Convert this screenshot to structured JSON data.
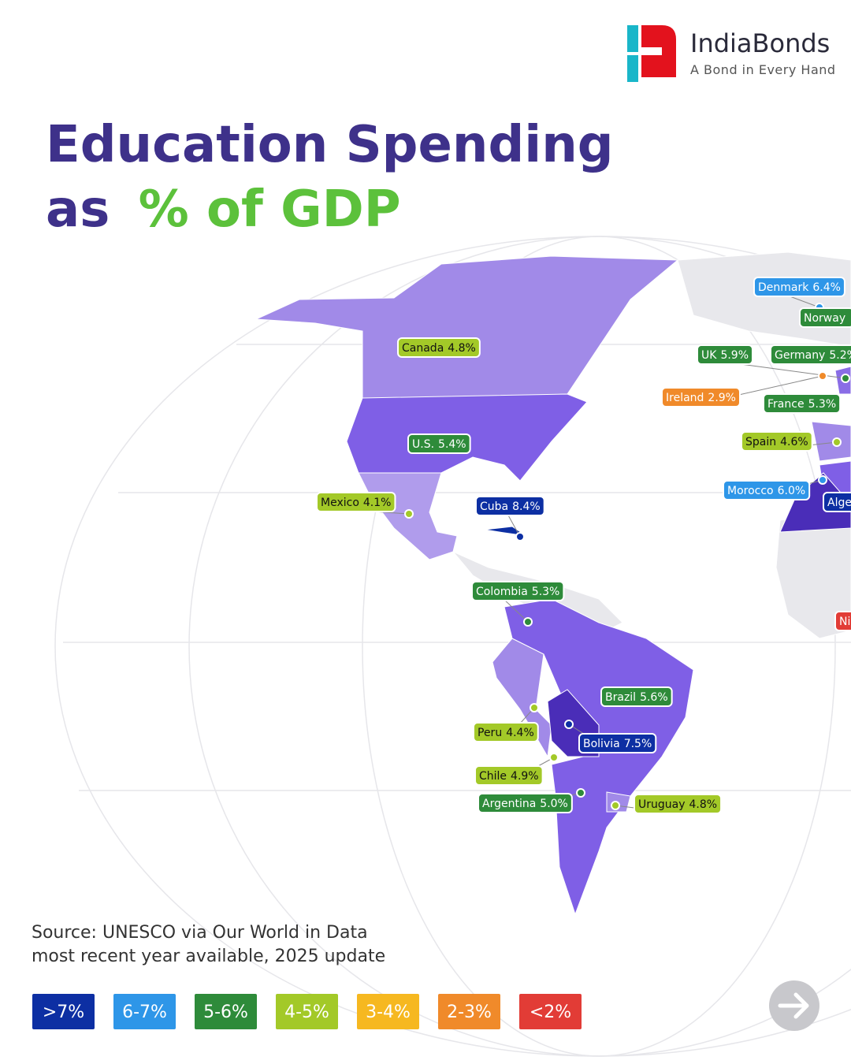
{
  "header": {
    "brand": "IndiaBonds",
    "tagline": "A Bond in Every Hand"
  },
  "title": {
    "line1": "Education Spending",
    "line2_start": "as",
    "line2_highlight": "% of GDP"
  },
  "countries": [
    {
      "name": "Denmark",
      "value": 6.4,
      "value_label": "6.4%"
    },
    {
      "name": "Canada",
      "value": 4.8,
      "value_label": "4.8%"
    },
    {
      "name": "UK",
      "value": 5.9,
      "value_label": "5.9%"
    },
    {
      "name": "Germany",
      "value": 5.2,
      "value_label": "5.2%"
    },
    {
      "name": "Ireland",
      "value": 2.9,
      "value_label": "2.9%"
    },
    {
      "name": "France",
      "value": 5.3,
      "value_label": "5.3%"
    },
    {
      "name": "U.S.",
      "value": 5.4,
      "value_label": "5.4%"
    },
    {
      "name": "Spain",
      "value": 4.6,
      "value_label": "4.6%"
    },
    {
      "name": "Morocco",
      "value": 6.0,
      "value_label": "6.0%"
    },
    {
      "name": "Mexico",
      "value": 4.1,
      "value_label": "4.1%"
    },
    {
      "name": "Cuba",
      "value": 8.4,
      "value_label": "8.4%"
    },
    {
      "name": "Colombia",
      "value": 5.3,
      "value_label": "5.3%"
    },
    {
      "name": "Brazil",
      "value": 5.6,
      "value_label": "5.6%"
    },
    {
      "name": "Peru",
      "value": 4.4,
      "value_label": "4.4%"
    },
    {
      "name": "Bolivia",
      "value": 7.5,
      "value_label": "7.5%"
    },
    {
      "name": "Chile",
      "value": 4.9,
      "value_label": "4.9%"
    },
    {
      "name": "Argentina",
      "value": 5.0,
      "value_label": "5.0%"
    },
    {
      "name": "Uruguay",
      "value": 4.8,
      "value_label": "4.8%"
    }
  ],
  "partial_labels": [
    {
      "text": "Norway",
      "color": "#2e8b3a"
    },
    {
      "text": "Alge",
      "color": "#0d2fa3"
    },
    {
      "text": "Ni",
      "color": "#e23c36"
    }
  ],
  "source": {
    "line1": "Source: UNESCO via Our World in Data",
    "line2": "most recent year available, 2025 update"
  },
  "legend": [
    {
      "label": ">7%",
      "min": 7,
      "color": "#0d2fa3"
    },
    {
      "label": "6-7%",
      "min": 6,
      "max": 7,
      "color": "#2e96e8"
    },
    {
      "label": "5-6%",
      "min": 5,
      "max": 6,
      "color": "#2e8b3a"
    },
    {
      "label": "4-5%",
      "min": 4,
      "max": 5,
      "color": "#a3c928"
    },
    {
      "label": "3-4%",
      "min": 3,
      "max": 4,
      "color": "#f6b820"
    },
    {
      "label": "2-3%",
      "min": 2,
      "max": 3,
      "color": "#f08a2a"
    },
    {
      "label": "<2%",
      "max": 2,
      "color": "#e23c36"
    }
  ]
}
